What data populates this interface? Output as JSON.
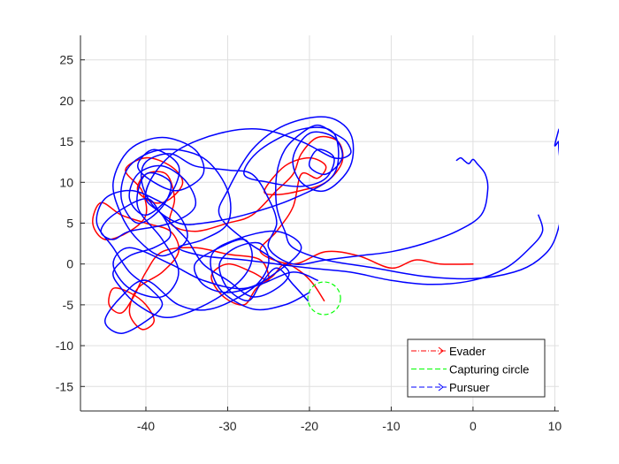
{
  "chart_data": {
    "type": "line",
    "title": "",
    "xlabel": "",
    "ylabel": "",
    "xlim": [
      -48,
      10.5
    ],
    "ylim": [
      -18,
      28
    ],
    "xticks": [
      -40,
      -30,
      -20,
      -10,
      0,
      10
    ],
    "yticks": [
      -15,
      -10,
      -5,
      0,
      5,
      10,
      15,
      20,
      25
    ],
    "grid": true,
    "legend_position": "bottom-right",
    "legend": [
      {
        "label": "Evader",
        "color": "#ff0000",
        "style": "dash-dot",
        "marker": "triangle-right"
      },
      {
        "label": "Capturing circle",
        "color": "#00ff00",
        "style": "dashed"
      },
      {
        "label": "Pursuer",
        "color": "#0000ff",
        "style": "dashed",
        "marker": "triangle-right"
      }
    ],
    "capturing_circle": {
      "center": [
        -18.2,
        -4.2
      ],
      "radius": 2.0
    },
    "series": [
      {
        "name": "Evader",
        "color": "#ff0000",
        "points": [
          [
            -18.2,
            -4.5
          ],
          [
            -19.5,
            -2.5
          ],
          [
            -21,
            -1
          ],
          [
            -23,
            0
          ],
          [
            -24.5,
            -1.5
          ],
          [
            -26.5,
            -3
          ],
          [
            -28,
            -5
          ],
          [
            -30.5,
            -4
          ],
          [
            -32,
            -1.5
          ],
          [
            -30,
            0
          ],
          [
            -27,
            -1
          ],
          [
            -25,
            -2
          ],
          [
            -26,
            0.5
          ],
          [
            -30,
            1.2
          ],
          [
            -34,
            2
          ],
          [
            -38,
            1.5
          ],
          [
            -40,
            -1
          ],
          [
            -41.5,
            -4
          ],
          [
            -43,
            -6
          ],
          [
            -44.5,
            -5
          ],
          [
            -44,
            -3
          ],
          [
            -42,
            -3.5
          ],
          [
            -40,
            -5
          ],
          [
            -39,
            -7
          ],
          [
            -40.5,
            -8
          ],
          [
            -42,
            -6
          ],
          [
            -41,
            -3
          ],
          [
            -38,
            -1
          ],
          [
            -36,
            1.5
          ],
          [
            -37,
            4
          ],
          [
            -40,
            5
          ],
          [
            -43,
            6
          ],
          [
            -45.5,
            7.5
          ],
          [
            -46.5,
            5
          ],
          [
            -45,
            3
          ],
          [
            -42,
            4
          ],
          [
            -40,
            6
          ],
          [
            -40.5,
            9
          ],
          [
            -42.5,
            11.5
          ],
          [
            -40,
            13
          ],
          [
            -37,
            12
          ],
          [
            -35.5,
            10
          ],
          [
            -37,
            8
          ],
          [
            -39,
            7.5
          ],
          [
            -41,
            9
          ],
          [
            -40,
            11
          ],
          [
            -37.5,
            11
          ],
          [
            -36.5,
            8
          ],
          [
            -37,
            5
          ],
          [
            -34,
            4
          ],
          [
            -30,
            5
          ],
          [
            -27,
            6
          ],
          [
            -24,
            9
          ],
          [
            -22,
            11
          ],
          [
            -21,
            13.5
          ],
          [
            -19,
            15.5
          ],
          [
            -16.5,
            15
          ],
          [
            -16,
            12.5
          ],
          [
            -18,
            10
          ],
          [
            -21,
            9
          ],
          [
            -24,
            8.5
          ],
          [
            -25.5,
            9
          ],
          [
            -23,
            12
          ],
          [
            -20,
            13
          ],
          [
            -18,
            12
          ],
          [
            -19,
            10.5
          ],
          [
            -21,
            11
          ],
          [
            -22,
            7
          ],
          [
            -24,
            4
          ],
          [
            -26,
            1.5
          ],
          [
            -22,
            0
          ],
          [
            -18,
            1.5
          ],
          [
            -14,
            1
          ],
          [
            -10,
            -0.5
          ],
          [
            -7,
            0.5
          ],
          [
            -4,
            0
          ],
          [
            0,
            0
          ]
        ]
      },
      {
        "name": "Pursuer",
        "color": "#0000ff",
        "points": [
          [
            -20.2,
            -4.5
          ],
          [
            -22,
            -2.5
          ],
          [
            -24,
            -0.5
          ],
          [
            -26,
            -2.5
          ],
          [
            -27.5,
            -4.5
          ],
          [
            -30,
            -3
          ],
          [
            -31,
            0
          ],
          [
            -29,
            2
          ],
          [
            -26,
            2.5
          ],
          [
            -25,
            0
          ],
          [
            -27,
            -3
          ],
          [
            -32,
            -5.5
          ],
          [
            -36,
            -5
          ],
          [
            -40,
            -2
          ],
          [
            -43,
            -4
          ],
          [
            -45,
            -7
          ],
          [
            -43,
            -8.5
          ],
          [
            -40,
            -7
          ],
          [
            -38,
            -5
          ],
          [
            -39.5,
            -3
          ],
          [
            -42,
            -1
          ],
          [
            -44,
            2
          ],
          [
            -46,
            5
          ],
          [
            -45,
            8
          ],
          [
            -42,
            9
          ],
          [
            -39,
            8
          ],
          [
            -36,
            6
          ],
          [
            -35,
            3
          ],
          [
            -38,
            1
          ],
          [
            -41,
            3
          ],
          [
            -43,
            6
          ],
          [
            -44,
            10
          ],
          [
            -42,
            14
          ],
          [
            -38,
            15.5
          ],
          [
            -34,
            14
          ],
          [
            -33,
            11
          ],
          [
            -36,
            9
          ],
          [
            -39,
            10
          ],
          [
            -41,
            12
          ],
          [
            -39,
            14
          ],
          [
            -36,
            12
          ],
          [
            -37,
            8.5
          ],
          [
            -40,
            6
          ],
          [
            -42,
            8
          ],
          [
            -41,
            11
          ],
          [
            -38,
            12
          ],
          [
            -35,
            10
          ],
          [
            -34,
            7
          ],
          [
            -37,
            5
          ],
          [
            -42,
            4
          ],
          [
            -44,
            3
          ],
          [
            -45.5,
            4
          ],
          [
            -44,
            6
          ],
          [
            -40,
            8
          ],
          [
            -38,
            6
          ],
          [
            -35,
            3
          ],
          [
            -33,
            0
          ],
          [
            -30,
            -2
          ],
          [
            -27,
            -4
          ],
          [
            -24,
            -3
          ],
          [
            -22.5,
            -1
          ],
          [
            -25,
            1
          ],
          [
            -28,
            3
          ],
          [
            -31,
            6
          ],
          [
            -30,
            9
          ],
          [
            -27,
            14
          ],
          [
            -23,
            17
          ],
          [
            -18,
            18
          ],
          [
            -15,
            16
          ],
          [
            -15,
            12
          ],
          [
            -18,
            9
          ],
          [
            -21,
            10
          ],
          [
            -22,
            13
          ],
          [
            -20,
            16
          ],
          [
            -17,
            15.5
          ],
          [
            -16,
            13
          ],
          [
            -18,
            11
          ],
          [
            -20,
            12
          ],
          [
            -19,
            14
          ],
          [
            -17,
            13
          ],
          [
            -18,
            10.5
          ],
          [
            -21,
            9.5
          ],
          [
            -25,
            10
          ],
          [
            -28,
            11
          ],
          [
            -26,
            14
          ],
          [
            -21,
            16.5
          ],
          [
            -17,
            16
          ],
          [
            -17,
            11
          ],
          [
            -22,
            8
          ],
          [
            -28,
            6
          ],
          [
            -33,
            5
          ],
          [
            -36,
            5
          ],
          [
            -39,
            7
          ],
          [
            -40.5,
            10
          ],
          [
            -40,
            12.5
          ],
          [
            -37,
            13.5
          ],
          [
            -34,
            12
          ],
          [
            -30,
            11.5
          ],
          [
            -27,
            11
          ],
          [
            -25,
            8
          ],
          [
            -24,
            5
          ],
          [
            -25,
            2
          ],
          [
            -22,
            0
          ],
          [
            -18,
            0.5
          ],
          [
            -14,
            1
          ],
          [
            -10,
            1.5
          ],
          [
            -6,
            2.5
          ],
          [
            -2,
            4
          ],
          [
            1,
            6
          ],
          [
            1.8,
            9
          ],
          [
            1.5,
            11
          ],
          [
            0.5,
            12.3
          ],
          [
            0,
            12.8
          ],
          [
            -0.5,
            12.3
          ],
          [
            -1,
            12.6
          ],
          [
            -1.5,
            13
          ],
          [
            -2,
            12.7
          ]
        ]
      },
      {
        "name": "Pursuer",
        "color": "#0000ff",
        "points": [
          [
            -19,
            -2
          ],
          [
            -22,
            -1
          ],
          [
            -26,
            -2.5
          ],
          [
            -30,
            -3.5
          ],
          [
            -33,
            -2.5
          ],
          [
            -34,
            0
          ],
          [
            -31,
            2
          ],
          [
            -28,
            3
          ],
          [
            -27,
            1
          ],
          [
            -28,
            -1.5
          ],
          [
            -31,
            -4
          ],
          [
            -35,
            -6
          ],
          [
            -38,
            -6.5
          ],
          [
            -41,
            -5
          ],
          [
            -43,
            -3
          ],
          [
            -44,
            -1
          ],
          [
            -42,
            1
          ],
          [
            -39,
            2
          ],
          [
            -37,
            3.5
          ],
          [
            -38,
            6
          ],
          [
            -40,
            8
          ],
          [
            -39,
            11
          ],
          [
            -36,
            14
          ],
          [
            -31,
            16
          ],
          [
            -26,
            16.5
          ],
          [
            -21,
            15
          ],
          [
            -17,
            13
          ],
          [
            -15,
            13.5
          ],
          [
            -15.5,
            15
          ],
          [
            -17,
            16
          ],
          [
            -19,
            17
          ],
          [
            -21,
            16
          ],
          [
            -23,
            14
          ],
          [
            -24,
            11
          ],
          [
            -24,
            7
          ],
          [
            -23,
            4
          ],
          [
            -22,
            2
          ],
          [
            -18,
            0.5
          ],
          [
            -12,
            -0.5
          ],
          [
            -6,
            -1.5
          ],
          [
            0,
            -1.8
          ],
          [
            5,
            -1
          ],
          [
            8,
            0.5
          ],
          [
            10,
            3
          ],
          [
            11,
            8
          ],
          [
            10.5,
            14
          ],
          [
            10.5,
            15
          ],
          [
            10,
            14.5
          ],
          [
            10.5,
            16.5
          ]
        ]
      },
      {
        "name": "Pursuer",
        "color": "#0000ff",
        "points": [
          [
            -20,
            -3.5
          ],
          [
            -23,
            -5
          ],
          [
            -27,
            -5.5
          ],
          [
            -31,
            -3
          ],
          [
            -32,
            1
          ],
          [
            -29,
            3
          ],
          [
            -24,
            4
          ],
          [
            -21,
            2
          ],
          [
            -24,
            -1
          ],
          [
            -28,
            -3
          ],
          [
            -33,
            -2
          ],
          [
            -37,
            0
          ],
          [
            -42,
            2
          ],
          [
            -44,
            0
          ],
          [
            -42,
            -3
          ],
          [
            -38,
            -4
          ],
          [
            -36,
            -1
          ],
          [
            -38,
            3
          ],
          [
            -41,
            7
          ],
          [
            -40,
            11
          ],
          [
            -37,
            10
          ],
          [
            -38,
            7
          ],
          [
            -41,
            5
          ],
          [
            -43,
            8
          ],
          [
            -42,
            12
          ],
          [
            -38,
            14
          ],
          [
            -33,
            13
          ],
          [
            -30,
            9
          ],
          [
            -30,
            5
          ],
          [
            -33,
            3
          ],
          [
            -36,
            2
          ],
          [
            -33,
            1
          ],
          [
            -28,
            0.5
          ],
          [
            -24,
            0
          ],
          [
            -20,
            -0.5
          ],
          [
            -15,
            -1
          ],
          [
            -10,
            -2
          ],
          [
            -5,
            -2.5
          ],
          [
            0,
            -2
          ],
          [
            4,
            -0.5
          ],
          [
            7,
            2
          ],
          [
            8.5,
            4
          ],
          [
            8,
            6
          ]
        ]
      }
    ]
  }
}
